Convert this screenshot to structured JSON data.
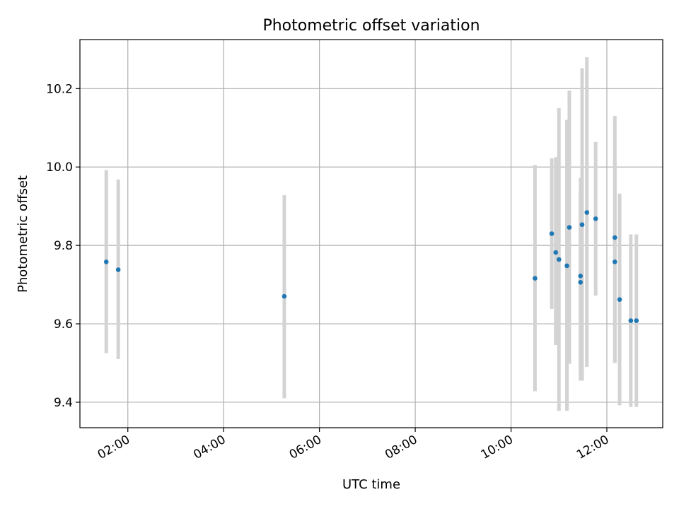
{
  "chart_data": {
    "type": "scatter",
    "title": "Photometric offset variation",
    "xlabel": "UTC time",
    "ylabel": "Photometric offset",
    "x_format": "HH:MM",
    "x_ticks": [
      "02:00",
      "04:00",
      "06:00",
      "08:00",
      "10:00",
      "12:00"
    ],
    "y_ticks": [
      "9.4",
      "9.6",
      "9.8",
      "10.0",
      "10.2"
    ],
    "xlim": [
      "01:00",
      "13:10"
    ],
    "ylim": [
      9.335,
      10.325
    ],
    "grid": true,
    "colors": {
      "point": "#1f77b4",
      "errorbar": "#d3d3d3",
      "grid": "#b0b0b0"
    },
    "series": [
      {
        "points": [
          {
            "x": "01:33",
            "y": 9.758,
            "ylow": 9.525,
            "yhigh": 9.992
          },
          {
            "x": "01:48",
            "y": 9.738,
            "ylow": 9.51,
            "yhigh": 9.968
          },
          {
            "x": "05:16",
            "y": 9.67,
            "ylow": 9.41,
            "yhigh": 9.928
          },
          {
            "x": "10:30",
            "y": 9.716,
            "ylow": 9.428,
            "yhigh": 10.005
          },
          {
            "x": "10:51",
            "y": 9.83,
            "ylow": 9.638,
            "yhigh": 10.022
          },
          {
            "x": "10:56",
            "y": 9.782,
            "ylow": 9.546,
            "yhigh": 10.025
          },
          {
            "x": "11:00",
            "y": 9.764,
            "ylow": 9.378,
            "yhigh": 10.15
          },
          {
            "x": "11:10",
            "y": 9.748,
            "ylow": 9.378,
            "yhigh": 10.12
          },
          {
            "x": "11:13",
            "y": 9.846,
            "ylow": 9.498,
            "yhigh": 10.195
          },
          {
            "x": "11:27",
            "y": 9.722,
            "ylow": 9.455,
            "yhigh": 9.972
          },
          {
            "x": "11:27",
            "y": 9.706,
            "ylow": 9.478,
            "yhigh": 9.935
          },
          {
            "x": "11:29",
            "y": 9.853,
            "ylow": 9.455,
            "yhigh": 10.252
          },
          {
            "x": "11:35",
            "y": 9.884,
            "ylow": 9.49,
            "yhigh": 10.28
          },
          {
            "x": "11:46",
            "y": 9.868,
            "ylow": 9.672,
            "yhigh": 10.064
          },
          {
            "x": "12:10",
            "y": 9.82,
            "ylow": 9.5,
            "yhigh": 10.13
          },
          {
            "x": "12:10",
            "y": 9.758,
            "ylow": 9.5,
            "yhigh": 10.015
          },
          {
            "x": "12:16",
            "y": 9.662,
            "ylow": 9.392,
            "yhigh": 9.932
          },
          {
            "x": "12:30",
            "y": 9.608,
            "ylow": 9.388,
            "yhigh": 9.828
          },
          {
            "x": "12:37",
            "y": 9.608,
            "ylow": 9.388,
            "yhigh": 9.828
          }
        ]
      }
    ]
  }
}
